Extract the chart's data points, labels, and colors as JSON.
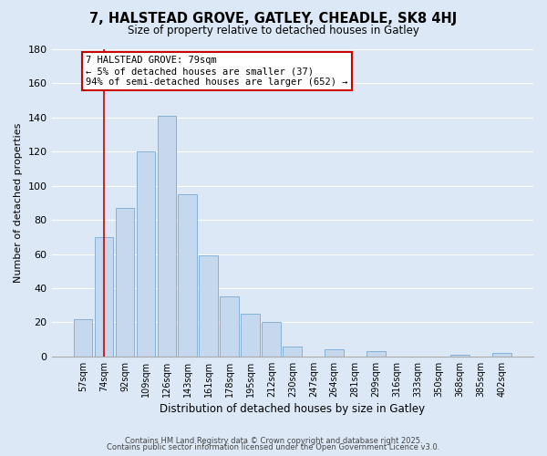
{
  "title": "7, HALSTEAD GROVE, GATLEY, CHEADLE, SK8 4HJ",
  "subtitle": "Size of property relative to detached houses in Gatley",
  "xlabel": "Distribution of detached houses by size in Gatley",
  "ylabel": "Number of detached properties",
  "bar_color": "#c6d8ee",
  "bar_edge_color": "#7aaad0",
  "background_color": "#dce8f5",
  "grid_color": "#ffffff",
  "categories": [
    "57sqm",
    "74sqm",
    "92sqm",
    "109sqm",
    "126sqm",
    "143sqm",
    "161sqm",
    "178sqm",
    "195sqm",
    "212sqm",
    "230sqm",
    "247sqm",
    "264sqm",
    "281sqm",
    "299sqm",
    "316sqm",
    "333sqm",
    "350sqm",
    "368sqm",
    "385sqm",
    "402sqm"
  ],
  "values": [
    22,
    70,
    87,
    120,
    141,
    95,
    59,
    35,
    25,
    20,
    6,
    0,
    4,
    0,
    3,
    0,
    0,
    0,
    1,
    0,
    2
  ],
  "ylim": [
    0,
    180
  ],
  "yticks": [
    0,
    20,
    40,
    60,
    80,
    100,
    120,
    140,
    160,
    180
  ],
  "vline_x": 1,
  "vline_color": "#cc0000",
  "annotation_title": "7 HALSTEAD GROVE: 79sqm",
  "annotation_line1": "← 5% of detached houses are smaller (37)",
  "annotation_line2": "94% of semi-detached houses are larger (652) →",
  "annotation_box_color": "#ffffff",
  "annotation_box_edge": "#cc0000",
  "footer1": "Contains HM Land Registry data © Crown copyright and database right 2025.",
  "footer2": "Contains public sector information licensed under the Open Government Licence v3.0."
}
